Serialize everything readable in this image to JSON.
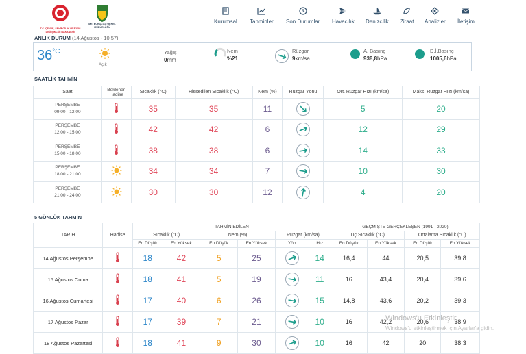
{
  "header": {
    "ministry_logo_text": "T.C. ÇEVRE, ŞEHİRCİLİK VE İKLİM DEĞİŞİKLİĞİ BAKANLIĞI",
    "mgm_logo_text": "METEOROLOJİ GENEL MÜDÜRLÜĞÜ",
    "nav": [
      {
        "label": "Kurumsal",
        "icon": "building-icon"
      },
      {
        "label": "Tahminler",
        "icon": "chart-icon"
      },
      {
        "label": "Son Durumlar",
        "icon": "clock-icon"
      },
      {
        "label": "Havacılık",
        "icon": "plane-icon"
      },
      {
        "label": "Denizcilik",
        "icon": "ship-icon"
      },
      {
        "label": "Ziraat",
        "icon": "leaf-icon"
      },
      {
        "label": "Analizler",
        "icon": "analysis-icon"
      },
      {
        "label": "İletişim",
        "icon": "mail-icon"
      }
    ]
  },
  "now": {
    "title": "ANLIK DURUM",
    "time": "(14 Ağustos - 10.57)",
    "temp": "36",
    "temp_unit": "°C",
    "condition": "Açık",
    "rain_label": "Yağış",
    "rain_value": "0",
    "rain_unit": "mm",
    "humidity_label": "Nem",
    "humidity_value": "%21",
    "wind_label": "Rüzgar",
    "wind_value": "9",
    "wind_unit": "km/sa",
    "pressure_label": "A. Basınç",
    "pressure_value": "938,8",
    "pressure_unit": "hPa",
    "sea_pressure_label": "D.İ.Basınç",
    "sea_pressure_value": "1005,6",
    "sea_pressure_unit": "hPa"
  },
  "hourly": {
    "title": "SAATLİK TAHMİN",
    "headers": [
      "Saat",
      "Beklenen Hadise",
      "Sıcaklık (°C)",
      "Hissedilen Sıcaklık (°C)",
      "Nem (%)",
      "Rüzgar Yönü",
      "Ort. Rüzgar Hızı (km/sa)",
      "Maks. Rüzgar Hızı (km/sa)"
    ],
    "rows": [
      {
        "day": "PERŞEMBE",
        "time": "09.00 - 12.00",
        "icon": "thermometer-icon",
        "temp": "35",
        "feels": "35",
        "hum": "11",
        "dir": 135,
        "avg": "5",
        "max": "20"
      },
      {
        "day": "PERŞEMBE",
        "time": "12.00 - 15.00",
        "icon": "thermometer-icon",
        "temp": "42",
        "feels": "42",
        "hum": "6",
        "dir": 70,
        "avg": "12",
        "max": "29"
      },
      {
        "day": "PERŞEMBE",
        "time": "15.00 - 18.00",
        "icon": "thermometer-icon",
        "temp": "38",
        "feels": "38",
        "hum": "6",
        "dir": 80,
        "avg": "14",
        "max": "33"
      },
      {
        "day": "PERŞEMBE",
        "time": "18.00 - 21.00",
        "icon": "sun-icon",
        "temp": "34",
        "feels": "34",
        "hum": "7",
        "dir": 100,
        "avg": "10",
        "max": "30"
      },
      {
        "day": "PERŞEMBE",
        "time": "21.00 - 24.00",
        "icon": "sun-icon",
        "temp": "30",
        "feels": "30",
        "hum": "12",
        "dir": 10,
        "avg": "4",
        "max": "20"
      }
    ]
  },
  "daily": {
    "title": "5 GÜNLÜK TAHMİN",
    "group_forecast": "TAHMİN EDİLEN",
    "group_past": "GEÇMİŞTE GERÇEKLEŞEN (1991 - 2020)",
    "col_date": "TARİH",
    "col_event": "Hadise",
    "col_temp": "Sıcaklık (°C)",
    "col_hum": "Nem (%)",
    "col_wind": "Rüzgar (km/sa)",
    "col_extreme": "Uç Sıcaklık (°C)",
    "col_avg": "Ortalama Sıcaklık (°C)",
    "low": "En Düşük",
    "high": "En Yüksek",
    "dir": "Yön",
    "speed": "Hız",
    "rows": [
      {
        "date": "14 Ağustos Perşembe",
        "tlo": "18",
        "thi": "42",
        "hlo": "5",
        "hhi": "25",
        "dir": 70,
        "spd": "14",
        "xlo": "16,4",
        "xhi": "44",
        "alo": "20,5",
        "ahi": "39,8"
      },
      {
        "date": "15 Ağustos Cuma",
        "tlo": "18",
        "thi": "41",
        "hlo": "5",
        "hhi": "19",
        "dir": 100,
        "spd": "11",
        "xlo": "16",
        "xhi": "43,4",
        "alo": "20,4",
        "ahi": "39,6"
      },
      {
        "date": "16 Ağustos Cumartesi",
        "tlo": "17",
        "thi": "40",
        "hlo": "6",
        "hhi": "26",
        "dir": 100,
        "spd": "15",
        "xlo": "14,8",
        "xhi": "43,6",
        "alo": "20,2",
        "ahi": "39,3"
      },
      {
        "date": "17 Ağustos Pazar",
        "tlo": "17",
        "thi": "39",
        "hlo": "7",
        "hhi": "21",
        "dir": 100,
        "spd": "10",
        "xlo": "16",
        "xhi": "42,2",
        "alo": "20,6",
        "ahi": "38,9"
      },
      {
        "date": "18 Ağustos Pazartesi",
        "tlo": "18",
        "thi": "41",
        "hlo": "9",
        "hhi": "30",
        "dir": 70,
        "spd": "10",
        "xlo": "16",
        "xhi": "42",
        "alo": "20",
        "ahi": "38,3"
      }
    ]
  },
  "watermark": {
    "line1": "Windows'u Etkinleştir",
    "line2": "Windows'u etkinleştirmek için Ayarlar'a gidin."
  }
}
